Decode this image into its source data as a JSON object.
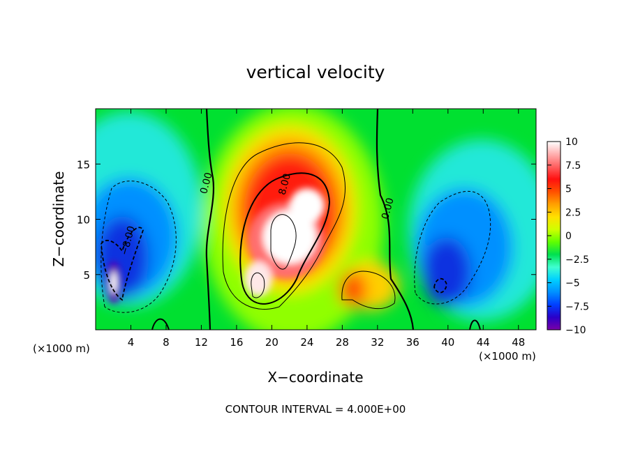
{
  "chart_data": {
    "type": "heatmap",
    "title": "vertical velocity",
    "xlabel": "X−coordinate",
    "ylabel": "Z−coordinate",
    "x_unit_left": "(×1000 m)",
    "x_unit_right": "(×1000 m)",
    "footer": "CONTOUR INTERVAL = 4.000E+00",
    "xlim": [
      0,
      50
    ],
    "ylim": [
      0,
      20
    ],
    "x_ticks": [
      4,
      8,
      12,
      16,
      20,
      24,
      28,
      32,
      36,
      40,
      44,
      48
    ],
    "x_tick_labels": [
      "4",
      "8",
      "12",
      "16",
      "20",
      "24",
      "28",
      "32",
      "36",
      "40",
      "44",
      "48"
    ],
    "y_ticks": [
      5,
      10,
      15
    ],
    "y_tick_labels": [
      "5",
      "10",
      "15"
    ],
    "colorbar": {
      "range": [
        -10,
        10
      ],
      "ticks": [
        10,
        7.5,
        5,
        2.5,
        0,
        -2.5,
        -5,
        -7.5,
        -10
      ],
      "tick_labels": [
        "10",
        "7.5",
        "5",
        "2.5",
        "0",
        "−2.5",
        "−5",
        "−7.5",
        "−10"
      ],
      "colors": [
        "#7a00a8",
        "#2a00c8",
        "#0040ff",
        "#0090ff",
        "#00d0ff",
        "#40ffd0",
        "#00e050",
        "#60ff00",
        "#d0ff00",
        "#ffe000",
        "#ffa000",
        "#ff5000",
        "#ff1010",
        "#ff6060",
        "#ffb0b0",
        "#ffffff"
      ]
    },
    "contour_labels": [
      {
        "text": "0.00",
        "x": 12.9,
        "z": 13.2
      },
      {
        "text": "0.00",
        "x": 33.5,
        "z": 10.9
      },
      {
        "text": "8.00",
        "x": 21.8,
        "z": 13.1
      },
      {
        "text": "−8.00",
        "x": 4.0,
        "z": 8.0
      }
    ],
    "features": [
      {
        "kind": "updraft",
        "x": 22,
        "z": 10,
        "peak": 10
      },
      {
        "kind": "updraft",
        "x": 29.5,
        "z": 3.5,
        "peak": 7
      },
      {
        "kind": "downdraft",
        "x": 2.3,
        "z": 5.2,
        "peak": -10
      },
      {
        "kind": "downdraft",
        "x": 39.5,
        "z": 5.5,
        "peak": -7.5
      }
    ]
  }
}
